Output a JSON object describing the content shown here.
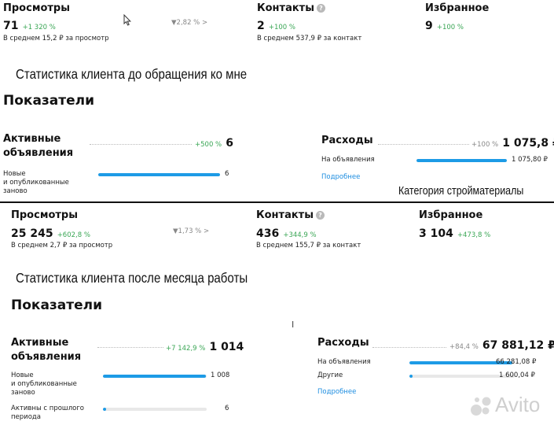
{
  "top": {
    "views": {
      "label": "Просмотры",
      "value": "71",
      "delta": "+1 320 %",
      "sub": "В среднем 15,2 ₽ за просмотр",
      "funnel": "2,82 %"
    },
    "contacts": {
      "label": "Контакты",
      "value": "2",
      "delta": "+100 %",
      "sub": "В среднем 537,9 ₽ за контакт"
    },
    "favorites": {
      "label": "Избранное",
      "value": "9",
      "delta": "+100 %"
    },
    "caption": "Статистика клиента до обращения ко мне",
    "section": "Показатели",
    "active": {
      "label_line1": "Активные",
      "label_line2": "объявления",
      "delta": "+500 %",
      "value": "6",
      "rows": [
        {
          "label_lines": [
            "Новые",
            "и опубликованные",
            "заново"
          ],
          "value": "6",
          "fraction": 1.0
        }
      ]
    },
    "expenses": {
      "label": "Расходы",
      "delta": "+100 %",
      "value": "1 075,8 ₽",
      "rows": [
        {
          "label": "На объявления",
          "value": "1 075,80 ₽",
          "fraction": 1.0
        }
      ],
      "more": "Подробнее"
    }
  },
  "category_caption": "Категория стройматериалы",
  "bottom": {
    "views": {
      "label": "Просмотры",
      "value": "25 245",
      "delta": "+602,8 %",
      "sub": "В среднем 2,7 ₽ за просмотр",
      "funnel": "1,73 %"
    },
    "contacts": {
      "label": "Контакты",
      "value": "436",
      "delta": "+344,9 %",
      "sub": "В среднем 155,7 ₽ за контакт"
    },
    "favorites": {
      "label": "Избранное",
      "value": "3 104",
      "delta": "+473,8 %"
    },
    "caption": "Статистика клиента после месяца работы",
    "section": "Показатели",
    "active": {
      "label_line1": "Активные",
      "label_line2": "объявления",
      "delta": "+7 142,9 %",
      "value": "1 014",
      "rows": [
        {
          "label_lines": [
            "Новые",
            "и опубликованные",
            "заново"
          ],
          "value": "1 008",
          "fraction": 0.994
        },
        {
          "label_lines": [
            "Активны с прошлого",
            "периода"
          ],
          "value": "6",
          "fraction": 0.006
        }
      ]
    },
    "expenses": {
      "label": "Расходы",
      "delta": "+84,4 %",
      "value": "67 881,12 ₽",
      "rows": [
        {
          "label": "На объявления",
          "value": "66 281,08 ₽",
          "fraction": 0.976
        },
        {
          "label": "Другие",
          "value": "1 600,04 ₽",
          "fraction": 0.024
        }
      ],
      "more": "Подробнее"
    }
  },
  "watermark": "Avito",
  "colors": {
    "accent": "#1d9be6",
    "positive": "#3aa655",
    "link": "#1d8de0"
  },
  "icons": {
    "info": "info-icon",
    "funnel": "funnel-icon",
    "chevron": "chevron-right-icon",
    "cursor": "cursor-icon",
    "text-cursor": "text-cursor-icon"
  }
}
